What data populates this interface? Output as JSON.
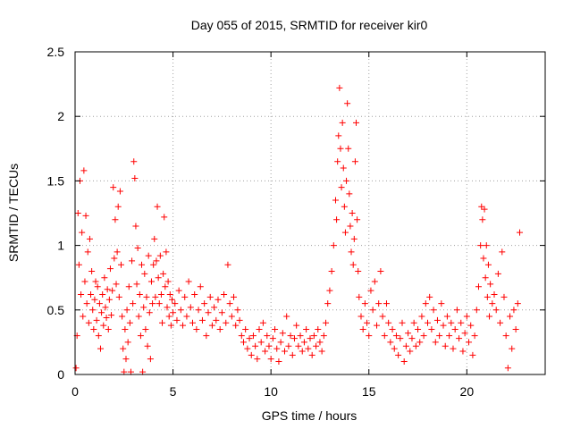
{
  "chart_data": {
    "type": "scatter",
    "title": "Day 055 of 2015, SRMTID for receiver kir0",
    "xlabel": "GPS time / hours",
    "ylabel": "SRMTID / TECUs",
    "xlim": [
      0,
      24
    ],
    "ylim": [
      0,
      2.5
    ],
    "xticks": [
      0,
      5,
      10,
      15,
      20
    ],
    "yticks": [
      0,
      0.5,
      1,
      1.5,
      2,
      2.5
    ],
    "xtick_labels": [
      "0",
      "5",
      "10",
      "15",
      "20"
    ],
    "ytick_labels": [
      "0",
      "0.5",
      "1",
      "1.5",
      "2",
      "2.5"
    ],
    "grid": true,
    "legend": "none",
    "marker": "plus",
    "color": "#ff0000",
    "series": [
      {
        "name": "SRMTID",
        "points": [
          [
            0.05,
            0.05
          ],
          [
            0.1,
            0.3
          ],
          [
            0.15,
            1.25
          ],
          [
            0.2,
            0.85
          ],
          [
            0.25,
            1.5
          ],
          [
            0.3,
            0.62
          ],
          [
            0.35,
            1.1
          ],
          [
            0.4,
            0.45
          ],
          [
            0.45,
            1.58
          ],
          [
            0.5,
            0.72
          ],
          [
            0.55,
            1.23
          ],
          [
            0.6,
            0.55
          ],
          [
            0.65,
            0.95
          ],
          [
            0.7,
            0.4
          ],
          [
            0.75,
            1.05
          ],
          [
            0.8,
            0.62
          ],
          [
            0.85,
            0.8
          ],
          [
            0.9,
            0.5
          ],
          [
            0.95,
            0.35
          ],
          [
            1.0,
            0.58
          ],
          [
            1.05,
            0.72
          ],
          [
            1.1,
            0.42
          ],
          [
            1.15,
            0.68
          ],
          [
            1.2,
            0.3
          ],
          [
            1.25,
            0.55
          ],
          [
            1.3,
            0.2
          ],
          [
            1.35,
            0.48
          ],
          [
            1.4,
            0.62
          ],
          [
            1.45,
            0.38
          ],
          [
            1.5,
            0.75
          ],
          [
            1.55,
            0.52
          ],
          [
            1.6,
            0.44
          ],
          [
            1.65,
            0.66
          ],
          [
            1.7,
            0.35
          ],
          [
            1.75,
            0.58
          ],
          [
            1.8,
            0.82
          ],
          [
            1.85,
            0.46
          ],
          [
            1.9,
            0.65
          ],
          [
            1.95,
            1.45
          ],
          [
            2.0,
            0.9
          ],
          [
            2.05,
            1.2
          ],
          [
            2.1,
            0.7
          ],
          [
            2.15,
            0.95
          ],
          [
            2.2,
            1.3
          ],
          [
            2.25,
            0.6
          ],
          [
            2.3,
            1.42
          ],
          [
            2.35,
            0.85
          ],
          [
            2.4,
            0.45
          ],
          [
            2.45,
            0.2
          ],
          [
            2.5,
            0.02
          ],
          [
            2.55,
            0.35
          ],
          [
            2.6,
            0.12
          ],
          [
            2.65,
            0.5
          ],
          [
            2.7,
            0.25
          ],
          [
            2.75,
            0.68
          ],
          [
            2.8,
            0.4
          ],
          [
            2.85,
            0.02
          ],
          [
            2.9,
            0.88
          ],
          [
            2.95,
            0.55
          ],
          [
            3.0,
            1.65
          ],
          [
            3.05,
            1.52
          ],
          [
            3.1,
            1.15
          ],
          [
            3.15,
            0.7
          ],
          [
            3.2,
            0.98
          ],
          [
            3.25,
            0.45
          ],
          [
            3.3,
            0.62
          ],
          [
            3.35,
            0.3
          ],
          [
            3.4,
            0.85
          ],
          [
            3.45,
            0.02
          ],
          [
            3.5,
            0.52
          ],
          [
            3.55,
            0.78
          ],
          [
            3.6,
            0.35
          ],
          [
            3.65,
            0.6
          ],
          [
            3.7,
            0.22
          ],
          [
            3.75,
            0.92
          ],
          [
            3.8,
            0.48
          ],
          [
            3.85,
            0.12
          ],
          [
            3.9,
            0.72
          ],
          [
            3.95,
            0.55
          ],
          [
            4.0,
            0.85
          ],
          [
            4.05,
            1.05
          ],
          [
            4.1,
            0.6
          ],
          [
            4.15,
            0.88
          ],
          [
            4.2,
            1.3
          ],
          [
            4.25,
            0.75
          ],
          [
            4.3,
            0.55
          ],
          [
            4.35,
            0.92
          ],
          [
            4.4,
            0.62
          ],
          [
            4.45,
            0.4
          ],
          [
            4.5,
            0.78
          ],
          [
            4.55,
            1.22
          ],
          [
            4.6,
            0.68
          ],
          [
            4.65,
            0.95
          ],
          [
            4.7,
            0.52
          ],
          [
            4.75,
            0.72
          ],
          [
            4.8,
            0.45
          ],
          [
            4.85,
            0.62
          ],
          [
            4.9,
            0.38
          ],
          [
            4.95,
            0.58
          ],
          [
            5.0,
            0.48
          ],
          [
            5.1,
            0.55
          ],
          [
            5.2,
            0.42
          ],
          [
            5.3,
            0.65
          ],
          [
            5.4,
            0.5
          ],
          [
            5.5,
            0.38
          ],
          [
            5.6,
            0.6
          ],
          [
            5.7,
            0.45
          ],
          [
            5.8,
            0.72
          ],
          [
            5.9,
            0.52
          ],
          [
            6.0,
            0.4
          ],
          [
            6.1,
            0.62
          ],
          [
            6.2,
            0.35
          ],
          [
            6.3,
            0.5
          ],
          [
            6.4,
            0.68
          ],
          [
            6.5,
            0.42
          ],
          [
            6.6,
            0.55
          ],
          [
            6.7,
            0.3
          ],
          [
            6.8,
            0.48
          ],
          [
            6.9,
            0.6
          ],
          [
            7.0,
            0.38
          ],
          [
            7.1,
            0.52
          ],
          [
            7.2,
            0.42
          ],
          [
            7.3,
            0.58
          ],
          [
            7.4,
            0.35
          ],
          [
            7.5,
            0.48
          ],
          [
            7.6,
            0.62
          ],
          [
            7.7,
            0.4
          ],
          [
            7.8,
            0.85
          ],
          [
            7.9,
            0.55
          ],
          [
            8.0,
            0.45
          ],
          [
            8.1,
            0.6
          ],
          [
            8.2,
            0.38
          ],
          [
            8.3,
            0.5
          ],
          [
            8.4,
            0.42
          ],
          [
            8.5,
            0.3
          ],
          [
            8.6,
            0.25
          ],
          [
            8.7,
            0.35
          ],
          [
            8.8,
            0.2
          ],
          [
            8.9,
            0.28
          ],
          [
            9.0,
            0.15
          ],
          [
            9.1,
            0.3
          ],
          [
            9.2,
            0.22
          ],
          [
            9.3,
            0.12
          ],
          [
            9.4,
            0.35
          ],
          [
            9.5,
            0.25
          ],
          [
            9.6,
            0.4
          ],
          [
            9.7,
            0.18
          ],
          [
            9.8,
            0.3
          ],
          [
            9.9,
            0.22
          ],
          [
            10.0,
            0.12
          ],
          [
            10.1,
            0.28
          ],
          [
            10.2,
            0.35
          ],
          [
            10.3,
            0.2
          ],
          [
            10.4,
            0.1
          ],
          [
            10.5,
            0.25
          ],
          [
            10.6,
            0.32
          ],
          [
            10.7,
            0.18
          ],
          [
            10.8,
            0.45
          ],
          [
            10.9,
            0.22
          ],
          [
            11.0,
            0.3
          ],
          [
            11.1,
            0.15
          ],
          [
            11.2,
            0.28
          ],
          [
            11.3,
            0.38
          ],
          [
            11.4,
            0.22
          ],
          [
            11.5,
            0.3
          ],
          [
            11.6,
            0.18
          ],
          [
            11.7,
            0.25
          ],
          [
            11.8,
            0.35
          ],
          [
            11.9,
            0.2
          ],
          [
            12.0,
            0.28
          ],
          [
            12.1,
            0.15
          ],
          [
            12.2,
            0.3
          ],
          [
            12.3,
            0.22
          ],
          [
            12.4,
            0.35
          ],
          [
            12.5,
            0.25
          ],
          [
            12.6,
            0.18
          ],
          [
            12.7,
            0.3
          ],
          [
            12.8,
            0.4
          ],
          [
            12.9,
            0.55
          ],
          [
            13.0,
            0.65
          ],
          [
            13.1,
            0.8
          ],
          [
            13.2,
            1.0
          ],
          [
            13.3,
            1.35
          ],
          [
            13.35,
            1.2
          ],
          [
            13.4,
            1.65
          ],
          [
            13.45,
            1.85
          ],
          [
            13.5,
            2.22
          ],
          [
            13.55,
            1.75
          ],
          [
            13.6,
            1.45
          ],
          [
            13.65,
            1.95
          ],
          [
            13.7,
            1.6
          ],
          [
            13.75,
            1.3
          ],
          [
            13.8,
            1.1
          ],
          [
            13.85,
            1.5
          ],
          [
            13.9,
            2.1
          ],
          [
            13.95,
            1.75
          ],
          [
            14.0,
            1.4
          ],
          [
            14.05,
            1.15
          ],
          [
            14.1,
            0.95
          ],
          [
            14.15,
            1.25
          ],
          [
            14.2,
            0.85
          ],
          [
            14.25,
            1.05
          ],
          [
            14.3,
            1.65
          ],
          [
            14.35,
            1.95
          ],
          [
            14.4,
            1.2
          ],
          [
            14.45,
            0.8
          ],
          [
            14.5,
            0.6
          ],
          [
            14.6,
            0.45
          ],
          [
            14.7,
            0.35
          ],
          [
            14.8,
            0.55
          ],
          [
            14.9,
            0.4
          ],
          [
            15.0,
            0.3
          ],
          [
            15.1,
            0.65
          ],
          [
            15.2,
            0.5
          ],
          [
            15.3,
            0.72
          ],
          [
            15.4,
            0.38
          ],
          [
            15.5,
            0.55
          ],
          [
            15.6,
            0.8
          ],
          [
            15.7,
            0.45
          ],
          [
            15.8,
            0.3
          ],
          [
            15.9,
            0.55
          ],
          [
            16.0,
            0.4
          ],
          [
            16.1,
            0.25
          ],
          [
            16.2,
            0.35
          ],
          [
            16.3,
            0.2
          ],
          [
            16.4,
            0.3
          ],
          [
            16.5,
            0.15
          ],
          [
            16.6,
            0.28
          ],
          [
            16.7,
            0.4
          ],
          [
            16.8,
            0.1
          ],
          [
            16.9,
            0.22
          ],
          [
            17.0,
            0.32
          ],
          [
            17.1,
            0.18
          ],
          [
            17.2,
            0.28
          ],
          [
            17.3,
            0.4
          ],
          [
            17.4,
            0.22
          ],
          [
            17.5,
            0.35
          ],
          [
            17.6,
            0.25
          ],
          [
            17.7,
            0.45
          ],
          [
            17.8,
            0.3
          ],
          [
            17.9,
            0.55
          ],
          [
            18.0,
            0.4
          ],
          [
            18.1,
            0.6
          ],
          [
            18.2,
            0.35
          ],
          [
            18.3,
            0.5
          ],
          [
            18.4,
            0.25
          ],
          [
            18.5,
            0.42
          ],
          [
            18.6,
            0.3
          ],
          [
            18.7,
            0.55
          ],
          [
            18.8,
            0.38
          ],
          [
            18.9,
            0.22
          ],
          [
            19.0,
            0.45
          ],
          [
            19.1,
            0.3
          ],
          [
            19.2,
            0.4
          ],
          [
            19.3,
            0.2
          ],
          [
            19.4,
            0.35
          ],
          [
            19.5,
            0.5
          ],
          [
            19.6,
            0.28
          ],
          [
            19.7,
            0.4
          ],
          [
            19.8,
            0.18
          ],
          [
            19.9,
            0.32
          ],
          [
            20.0,
            0.45
          ],
          [
            20.1,
            0.25
          ],
          [
            20.2,
            0.38
          ],
          [
            20.3,
            0.15
          ],
          [
            20.4,
            0.3
          ],
          [
            20.5,
            0.5
          ],
          [
            20.6,
            0.68
          ],
          [
            20.7,
            1.0
          ],
          [
            20.75,
            1.3
          ],
          [
            20.8,
            1.2
          ],
          [
            20.85,
            0.9
          ],
          [
            20.9,
            1.28
          ],
          [
            20.95,
            0.75
          ],
          [
            21.0,
            1.0
          ],
          [
            21.05,
            0.6
          ],
          [
            21.1,
            0.85
          ],
          [
            21.15,
            0.45
          ],
          [
            21.2,
            0.7
          ],
          [
            21.3,
            0.55
          ],
          [
            21.4,
            0.62
          ],
          [
            21.5,
            0.5
          ],
          [
            21.6,
            0.78
          ],
          [
            21.7,
            0.4
          ],
          [
            21.8,
            0.95
          ],
          [
            21.9,
            0.6
          ],
          [
            22.0,
            0.3
          ],
          [
            22.1,
            0.05
          ],
          [
            22.2,
            0.45
          ],
          [
            22.3,
            0.2
          ],
          [
            22.4,
            0.5
          ],
          [
            22.5,
            0.35
          ],
          [
            22.6,
            0.55
          ],
          [
            22.7,
            1.1
          ]
        ]
      }
    ]
  }
}
